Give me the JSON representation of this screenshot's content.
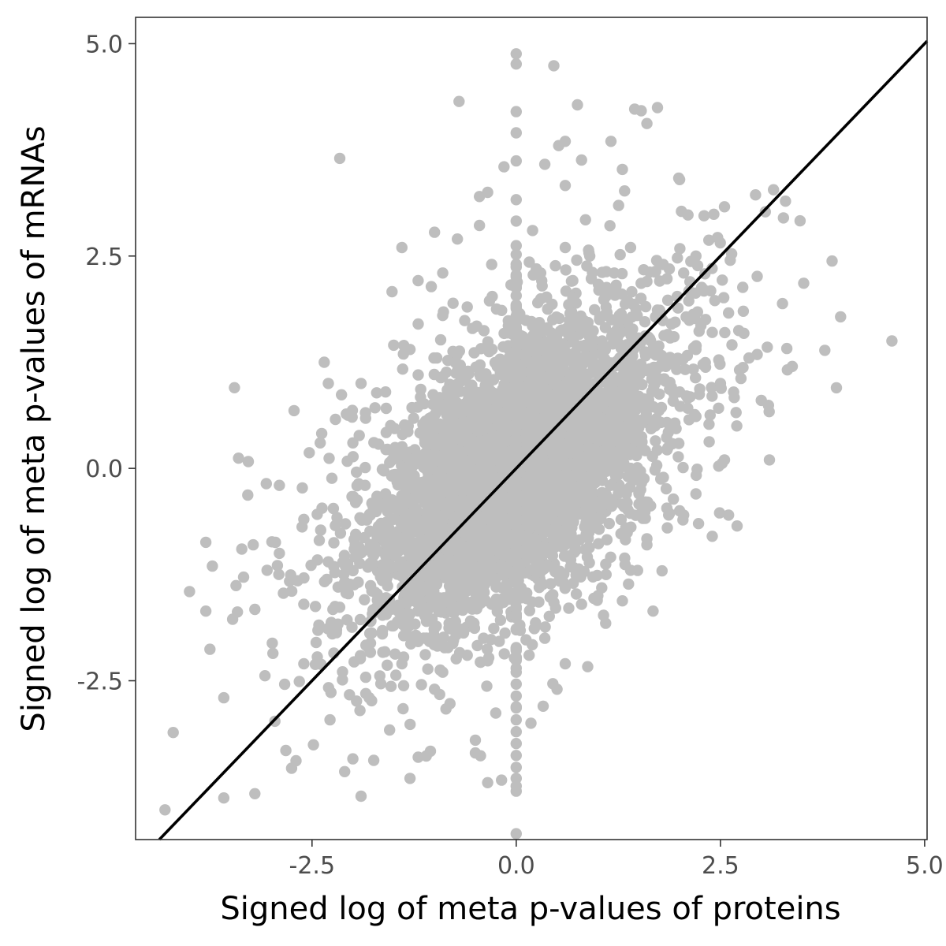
{
  "chart_data": {
    "type": "scatter",
    "title": "",
    "xlabel": "Signed log of meta p-values of proteins",
    "ylabel": "Signed log of meta p-values of mRNAs",
    "xlim": [
      -4.66,
      5.03
    ],
    "ylim": [
      -4.37,
      5.31
    ],
    "x_ticks": [
      -2.5,
      0.0,
      2.5,
      5.0
    ],
    "x_tick_labels": [
      "-2.5",
      "0.0",
      "2.5",
      "5.0"
    ],
    "y_ticks": [
      -2.5,
      0.0,
      2.5,
      5.0
    ],
    "y_tick_labels": [
      "-2.5",
      "0.0",
      "2.5",
      "5.0"
    ],
    "grid": false,
    "point_color": "#bebebe",
    "line_color": "#000000",
    "reference_line": {
      "intercept": 0.0,
      "slope": 1.0
    },
    "points": [
      [
        0.0,
        4.88
      ],
      [
        0.46,
        4.74
      ],
      [
        -0.7,
        4.32
      ],
      [
        0.75,
        4.28
      ],
      [
        1.45,
        4.23
      ],
      [
        1.53,
        4.21
      ],
      [
        0.0,
        4.2
      ],
      [
        1.6,
        4.06
      ],
      [
        0.0,
        3.95
      ],
      [
        1.16,
        3.85
      ],
      [
        0.6,
        3.85
      ],
      [
        0.52,
        3.8
      ],
      [
        -2.16,
        3.65
      ],
      [
        0.8,
        3.63
      ],
      [
        0.0,
        3.62
      ],
      [
        -0.15,
        3.55
      ],
      [
        0.35,
        3.58
      ],
      [
        1.3,
        3.52
      ],
      [
        2.0,
        3.4
      ],
      [
        0.6,
        3.33
      ],
      [
        -0.35,
        3.25
      ],
      [
        3.15,
        3.28
      ],
      [
        2.93,
        3.22
      ],
      [
        -0.45,
        3.2
      ],
      [
        2.55,
        3.08
      ],
      [
        3.05,
        3.02
      ],
      [
        -0.45,
        2.86
      ],
      [
        0.2,
        2.8
      ],
      [
        -1.0,
        2.78
      ],
      [
        -0.72,
        2.7
      ],
      [
        -1.4,
        2.6
      ],
      [
        2.2,
        2.5
      ],
      [
        2.62,
        2.45
      ],
      [
        2.95,
        2.26
      ],
      [
        3.52,
        2.18
      ],
      [
        -0.9,
        2.3
      ],
      [
        -1.52,
        2.08
      ],
      [
        -1.04,
        2.14
      ],
      [
        2.3,
        2.1
      ],
      [
        3.26,
        1.94
      ],
      [
        2.78,
        1.85
      ],
      [
        2.6,
        1.83
      ],
      [
        4.6,
        1.5
      ],
      [
        2.85,
        1.3
      ],
      [
        3.38,
        1.2
      ],
      [
        3.32,
        1.16
      ],
      [
        3.0,
        0.8
      ],
      [
        2.5,
        1.0
      ],
      [
        3.1,
        0.1
      ],
      [
        2.6,
        -0.55
      ],
      [
        2.2,
        -0.3
      ],
      [
        2.55,
        0.1
      ],
      [
        -1.5,
        1.45
      ],
      [
        -1.3,
        1.4
      ],
      [
        -1.9,
        1.0
      ],
      [
        -2.35,
        1.25
      ],
      [
        -2.08,
        0.64
      ],
      [
        -2.3,
        1.0
      ],
      [
        -3.45,
        0.95
      ],
      [
        -3.4,
        0.12
      ],
      [
        -3.28,
        0.08
      ],
      [
        -3.06,
        -0.18
      ],
      [
        -2.72,
        0.68
      ],
      [
        -2.4,
        0.3
      ],
      [
        -2.9,
        -0.2
      ],
      [
        -3.36,
        -0.95
      ],
      [
        -3.22,
        -0.9
      ],
      [
        -3.8,
        -0.87
      ],
      [
        -4.0,
        -1.45
      ],
      [
        -3.8,
        -1.68
      ],
      [
        -3.75,
        -2.13
      ],
      [
        -3.43,
        -1.38
      ],
      [
        -3.2,
        -1.66
      ],
      [
        -3.05,
        -1.2
      ],
      [
        -2.85,
        -1.47
      ],
      [
        -2.6,
        -2.3
      ],
      [
        -2.28,
        -2.96
      ],
      [
        -3.58,
        -2.7
      ],
      [
        -4.2,
        -3.11
      ],
      [
        -3.58,
        -3.88
      ],
      [
        -3.2,
        -3.83
      ],
      [
        -4.3,
        -4.02
      ],
      [
        -2.75,
        -3.53
      ],
      [
        -2.0,
        -3.42
      ],
      [
        -2.1,
        -3.57
      ],
      [
        -1.9,
        -3.86
      ],
      [
        -1.55,
        -3.08
      ],
      [
        -1.3,
        -3.65
      ],
      [
        -1.2,
        -3.4
      ],
      [
        -1.05,
        -3.33
      ],
      [
        -0.35,
        -3.7
      ],
      [
        -0.18,
        -3.67
      ],
      [
        -0.5,
        -3.35
      ],
      [
        -0.5,
        -3.2
      ],
      [
        -0.25,
        -2.88
      ],
      [
        0.0,
        -3.8
      ],
      [
        0.0,
        -3.74
      ],
      [
        0.0,
        -3.65
      ],
      [
        0.0,
        -3.52
      ],
      [
        0.0,
        -3.38
      ],
      [
        0.0,
        -3.24
      ],
      [
        0.0,
        -3.1
      ],
      [
        0.0,
        -2.96
      ],
      [
        0.0,
        -2.82
      ],
      [
        0.0,
        -2.68
      ],
      [
        0.0,
        -2.54
      ],
      [
        0.0,
        -2.4
      ],
      [
        0.0,
        -2.26
      ],
      [
        0.0,
        -2.12
      ],
      [
        0.18,
        -3.0
      ],
      [
        0.33,
        -2.8
      ],
      [
        0.5,
        -2.6
      ],
      [
        0.6,
        -2.3
      ],
      [
        0.8,
        -1.6
      ],
      [
        1.0,
        -1.5
      ],
      [
        1.3,
        -1.56
      ],
      [
        1.1,
        -1.25
      ],
      [
        1.4,
        -1.2
      ],
      [
        1.6,
        -0.9
      ],
      [
        1.85,
        -0.7
      ],
      [
        2.05,
        -0.55
      ],
      [
        2.0,
        -0.5
      ],
      [
        -3.72,
        -1.15
      ],
      [
        -2.2,
        -1.9
      ],
      [
        -2.6,
        -1.6
      ],
      [
        -1.0,
        -2.6
      ],
      [
        -1.4,
        -2.3
      ],
      [
        -0.6,
        -2.2
      ],
      [
        -0.9,
        -2.4
      ],
      [
        -1.8,
        -2.7
      ],
      [
        -2.45,
        -2.05
      ],
      [
        -1.7,
        -1.55
      ],
      [
        -1.1,
        -1.8
      ],
      [
        -0.4,
        -2.0
      ],
      [
        0.35,
        -2.0
      ],
      [
        -0.9,
        1.8
      ],
      [
        -1.2,
        1.7
      ],
      [
        -0.6,
        1.9
      ],
      [
        0.9,
        2.5
      ],
      [
        1.2,
        2.3
      ],
      [
        1.6,
        2.2
      ],
      [
        1.4,
        2.6
      ],
      [
        1.8,
        2.4
      ],
      [
        2.05,
        2.3
      ],
      [
        0.3,
        2.3
      ],
      [
        0.6,
        2.6
      ],
      [
        -0.3,
        2.4
      ],
      [
        -1.6,
        0.9
      ],
      [
        -1.2,
        1.1
      ],
      [
        -2.0,
        0.3
      ],
      [
        -1.85,
        -0.2
      ],
      [
        -1.5,
        -0.6
      ],
      [
        -1.1,
        -1.0
      ],
      [
        -0.7,
        -1.4
      ],
      [
        -0.3,
        -1.6
      ],
      [
        0.2,
        -1.2
      ],
      [
        0.6,
        -0.9
      ],
      [
        1.0,
        -0.4
      ],
      [
        1.4,
        0.0
      ],
      [
        1.7,
        0.5
      ],
      [
        2.0,
        0.9
      ],
      [
        2.2,
        1.4
      ],
      [
        1.9,
        1.7
      ],
      [
        1.5,
        1.5
      ],
      [
        1.1,
        1.9
      ],
      [
        0.7,
        2.0
      ],
      [
        0.3,
        1.6
      ],
      [
        -0.1,
        1.2
      ],
      [
        -0.5,
        0.9
      ],
      [
        -0.9,
        0.5
      ],
      [
        -1.3,
        0.1
      ],
      [
        -1.6,
        -0.3
      ],
      [
        -0.2,
        0.8
      ],
      [
        0.2,
        0.4
      ],
      [
        0.6,
        0.2
      ],
      [
        0.9,
        0.6
      ],
      [
        1.3,
        1.0
      ],
      [
        0.5,
        1.3
      ],
      [
        -0.6,
        0.3
      ],
      [
        -1.0,
        -0.2
      ],
      [
        -0.4,
        -0.6
      ],
      [
        0.0,
        -0.3
      ],
      [
        0.4,
        -0.5
      ],
      [
        0.8,
        0.0
      ],
      [
        1.2,
        0.4
      ],
      [
        -0.2,
        -1.0
      ],
      [
        -0.8,
        -0.8
      ],
      [
        0.1,
        0.1
      ],
      [
        2.4,
        1.6
      ],
      [
        2.7,
        0.5
      ],
      [
        2.4,
        -0.8
      ],
      [
        -2.6,
        -0.6
      ],
      [
        -2.9,
        -1.0
      ],
      [
        -2.3,
        -1.1
      ]
    ],
    "clusters": [
      {
        "cx": 0.0,
        "cy": 0.0,
        "sx": 0.72,
        "sy": 0.75,
        "rho": 0.52,
        "n": 2200
      },
      {
        "cx": 0.0,
        "cy": 0.0,
        "sx": 1.05,
        "sy": 1.02,
        "rho": 0.55,
        "n": 1600
      },
      {
        "cx": 0.0,
        "cy": 0.0,
        "sx": 0.5,
        "sy": 0.55,
        "rho": 0.45,
        "n": 1400
      },
      {
        "cx": 0.0,
        "cy": 0.0,
        "sx": 1.35,
        "sy": 1.3,
        "rho": 0.58,
        "n": 450
      },
      {
        "cx": 0.0,
        "cy": 0.0,
        "sx": 0.0,
        "sy": 1.35,
        "rho": 0.0,
        "n": 140
      }
    ]
  }
}
